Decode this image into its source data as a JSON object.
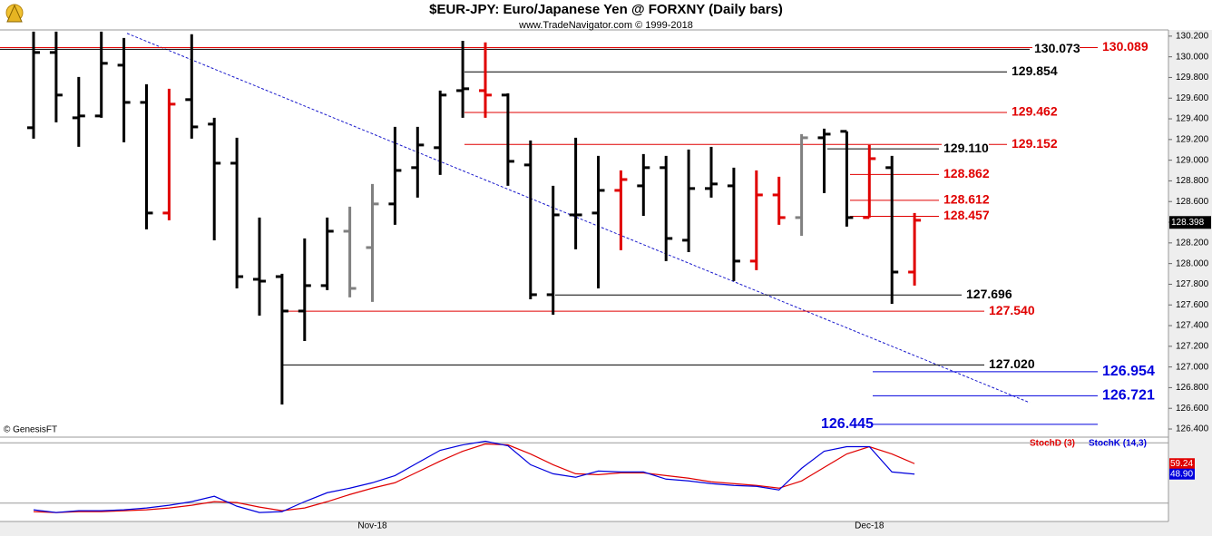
{
  "chart_data": [
    {
      "type": "ohlc",
      "title": "$EUR-JPY:  Euro/Japanese Yen @ FORXNY  (Daily bars)",
      "subtitle": "www.TradeNavigator.com © 1999-2018",
      "source": "© GenesisFT",
      "ylim": [
        126.33,
        130.26
      ],
      "yticks": [
        {
          "value": 130.2,
          "label": "130.200"
        },
        {
          "value": 130.0,
          "label": "130.000"
        },
        {
          "value": 129.8,
          "label": "129.800"
        },
        {
          "value": 129.6,
          "label": "129.600"
        },
        {
          "value": 129.4,
          "label": "129.400"
        },
        {
          "value": 129.2,
          "label": "129.200"
        },
        {
          "value": 129.0,
          "label": "129.000"
        },
        {
          "value": 128.8,
          "label": "128.800"
        },
        {
          "value": 128.6,
          "label": "128.600"
        },
        {
          "value": 128.4,
          "label": "128.400"
        },
        {
          "value": 128.2,
          "label": "128.200"
        },
        {
          "value": 128.0,
          "label": "128.000"
        },
        {
          "value": 127.8,
          "label": "127.800"
        },
        {
          "value": 127.6,
          "label": "127.600"
        },
        {
          "value": 127.4,
          "label": "127.400"
        },
        {
          "value": 127.2,
          "label": "127.200"
        },
        {
          "value": 127.0,
          "label": "127.000"
        },
        {
          "value": 126.8,
          "label": "126.800"
        },
        {
          "value": 126.6,
          "label": "126.600"
        },
        {
          "value": 126.4,
          "label": "126.400"
        }
      ],
      "ohlc": {
        "open": [
          129.314,
          130.042,
          129.41,
          129.428,
          129.919,
          129.559,
          128.489,
          129.586,
          129.349,
          128.971,
          127.848,
          127.874,
          127.541,
          127.787,
          128.313,
          128.155,
          128.577,
          128.928,
          129.121,
          129.673,
          129.673,
          129.63,
          128.954,
          127.699,
          128.471,
          128.489,
          128.708,
          128.752,
          128.928,
          128.226,
          128.726,
          128.752,
          128.024,
          128.664,
          128.445,
          129.217,
          129.279,
          128.445,
          128.928,
          127.918
        ],
        "high": [
          130.244,
          130.244,
          129.805,
          130.244,
          130.182,
          129.735,
          129.691,
          130.218,
          129.41,
          129.217,
          128.445,
          127.901,
          128.243,
          128.445,
          128.55,
          128.77,
          129.322,
          129.322,
          129.673,
          130.155,
          130.139,
          129.647,
          129.191,
          128.752,
          129.217,
          129.042,
          128.901,
          129.059,
          129.042,
          129.103,
          129.129,
          128.928,
          128.901,
          128.84,
          129.252,
          129.305,
          129.279,
          129.147,
          129.042,
          128.489
        ],
        "low": [
          129.208,
          129.366,
          129.129,
          129.41,
          129.173,
          128.331,
          128.419,
          129.208,
          128.225,
          127.76,
          127.497,
          126.637,
          127.251,
          127.743,
          127.673,
          127.629,
          128.375,
          128.638,
          128.857,
          129.41,
          129.41,
          128.752,
          127.655,
          127.506,
          128.138,
          127.76,
          128.129,
          128.462,
          128.024,
          128.111,
          128.638,
          127.831,
          127.936,
          128.375,
          128.269,
          128.682,
          128.357,
          128.445,
          127.611,
          127.787
        ],
        "close": [
          130.042,
          129.63,
          129.428,
          129.937,
          129.559,
          128.489,
          129.542,
          129.322,
          128.971,
          127.874,
          127.83,
          127.541,
          127.787,
          128.313,
          127.76,
          128.577,
          128.901,
          129.147,
          129.63,
          129.691,
          129.63,
          128.989,
          127.699,
          128.471,
          128.471,
          128.708,
          128.813,
          128.928,
          128.243,
          128.726,
          128.77,
          128.024,
          128.664,
          128.445,
          129.217,
          129.252,
          128.445,
          129.015,
          127.918,
          128.419
        ],
        "colors": [
          "#000000",
          "#000000",
          "#000000",
          "#000000",
          "#000000",
          "#000000",
          "#e00000",
          "#000000",
          "#000000",
          "#000000",
          "#000000",
          "#000000",
          "#000000",
          "#000000",
          "#808080",
          "#808080",
          "#000000",
          "#000000",
          "#000000",
          "#000000",
          "#e00000",
          "#000000",
          "#000000",
          "#000000",
          "#000000",
          "#000000",
          "#e00000",
          "#000000",
          "#000000",
          "#000000",
          "#000000",
          "#000000",
          "#e00000",
          "#e00000",
          "#808080",
          "#000000",
          "#000000",
          "#e00000",
          "#000000",
          "#e00000"
        ]
      },
      "categories": [
        null,
        null,
        null,
        null,
        null,
        null,
        null,
        null,
        null,
        null,
        null,
        null,
        null,
        null,
        null,
        "Nov-18",
        null,
        null,
        null,
        null,
        null,
        null,
        null,
        null,
        null,
        null,
        null,
        null,
        null,
        null,
        null,
        null,
        null,
        null,
        null,
        null,
        null,
        "Dec-18",
        null,
        null
      ],
      "levels": [
        {
          "value": 130.089,
          "label": "130.089",
          "color": "#e00000"
        },
        {
          "value": 130.073,
          "label": "130.073",
          "color": "#000000"
        },
        {
          "value": 129.854,
          "label": "129.854",
          "color": "#000000"
        },
        {
          "value": 129.462,
          "label": "129.462",
          "color": "#e00000"
        },
        {
          "value": 129.152,
          "label": "129.152",
          "color": "#e00000"
        },
        {
          "value": 129.11,
          "label": "129.110",
          "color": "#000000"
        },
        {
          "value": 128.862,
          "label": "128.862",
          "color": "#e00000"
        },
        {
          "value": 128.612,
          "label": "128.612",
          "color": "#e00000"
        },
        {
          "value": 128.457,
          "label": "128.457",
          "color": "#e00000"
        },
        {
          "value": 127.696,
          "label": "127.696",
          "color": "#000000"
        },
        {
          "value": 127.54,
          "label": "127.540",
          "color": "#e00000"
        },
        {
          "value": 127.02,
          "label": "127.020",
          "color": "#000000"
        },
        {
          "value": 126.954,
          "label": "126.954",
          "color": "#0000dd"
        },
        {
          "value": 126.721,
          "label": "126.721",
          "color": "#0000dd"
        },
        {
          "value": 126.445,
          "label": "126.445",
          "color": "#0000dd"
        }
      ],
      "trendline": {
        "color": "#1a1acc",
        "values": [
          130.227,
          126.655
        ]
      },
      "last_price": {
        "value": 128.398,
        "label": "128.398"
      }
    },
    {
      "type": "line",
      "ylim": [
        0,
        100
      ],
      "guides": [
        20,
        80
      ],
      "series": [
        {
          "name": "StochD (3)",
          "color": "#e00000",
          "values": [
            11.6,
            10.7,
            11.6,
            11.6,
            12.5,
            13.4,
            15.2,
            17.9,
            21.5,
            20.6,
            16.1,
            12.5,
            15.2,
            21.5,
            28.6,
            34.9,
            40.3,
            51.0,
            61.8,
            71.6,
            78.8,
            77.9,
            68.9,
            58.2,
            49.2,
            48.3,
            50.1,
            50.1,
            47.4,
            44.8,
            41.2,
            39.4,
            37.6,
            34.9,
            42.1,
            55.5,
            68.9,
            76.1,
            68.9,
            59.24
          ],
          "value_labels": [
            null,
            null,
            null,
            null,
            null,
            null,
            null,
            null,
            null,
            null,
            null,
            null,
            null,
            null,
            null,
            null,
            null,
            null,
            null,
            null,
            null,
            null,
            null,
            null,
            null,
            null,
            null,
            null,
            null,
            null,
            null,
            null,
            null,
            null,
            null,
            null,
            null,
            null,
            null,
            "59.24"
          ]
        },
        {
          "name": "StochK (14,3)",
          "color": "#0000dd",
          "values": [
            13.4,
            10.7,
            12.5,
            12.5,
            13.4,
            15.2,
            17.9,
            21.5,
            26.9,
            17.0,
            10.7,
            11.6,
            21.5,
            30.4,
            34.9,
            40.3,
            47.4,
            60.0,
            72.5,
            77.9,
            81.5,
            77.0,
            58.2,
            49.2,
            45.7,
            51.9,
            51.0,
            51.0,
            43.9,
            42.1,
            39.4,
            37.6,
            36.7,
            33.1,
            54.6,
            71.6,
            76.1,
            76.1,
            51.0,
            48.9
          ],
          "value_labels": [
            null,
            null,
            null,
            null,
            null,
            null,
            null,
            null,
            null,
            null,
            null,
            null,
            null,
            null,
            null,
            null,
            null,
            null,
            null,
            null,
            null,
            null,
            null,
            null,
            null,
            null,
            null,
            null,
            null,
            null,
            null,
            null,
            null,
            null,
            null,
            null,
            null,
            null,
            null,
            "48.90"
          ]
        }
      ]
    }
  ]
}
